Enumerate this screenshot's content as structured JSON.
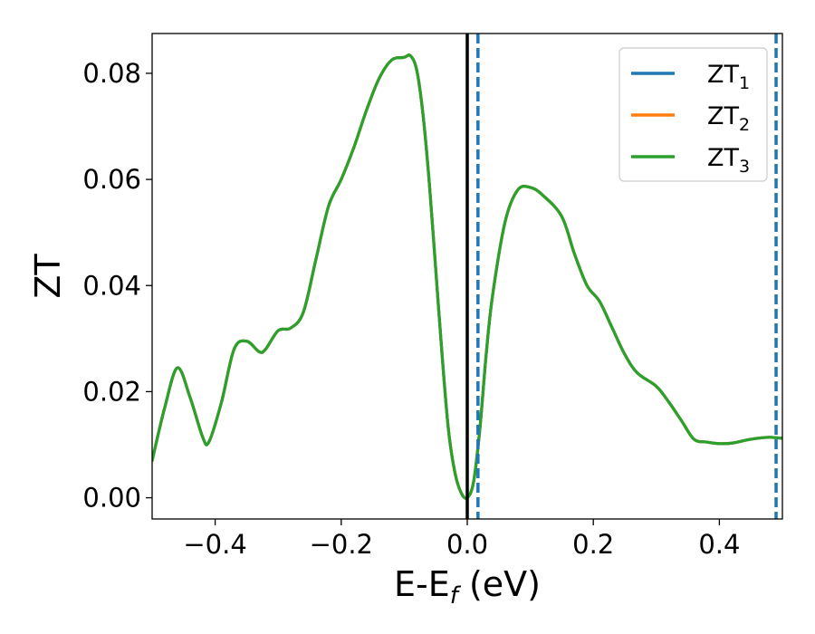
{
  "chart_data": {
    "type": "line",
    "title": "",
    "xlabel": "E-E",
    "xlabel_sub": "f",
    "xlabel_suffix": " (eV)",
    "ylabel": "ZT",
    "xlim": [
      -0.5,
      0.5
    ],
    "ylim": [
      -0.004,
      0.0875
    ],
    "xticks": [
      -0.4,
      -0.2,
      0.0,
      0.2,
      0.4
    ],
    "xtick_labels": [
      "−0.4",
      "−0.2",
      "0.0",
      "0.2",
      "0.4"
    ],
    "yticks": [
      0.0,
      0.02,
      0.04,
      0.06,
      0.08
    ],
    "ytick_labels": [
      "0.00",
      "0.02",
      "0.04",
      "0.06",
      "0.08"
    ],
    "grid": false,
    "legend_position": "top-right",
    "colors": {
      "series1": "#1f77b4",
      "series2": "#ff7f0e",
      "series3": "#2ca02c",
      "fermi_line": "#000000",
      "dashed_lines": "#1f77b4"
    },
    "vertical_lines": [
      {
        "x": 0.0,
        "style": "solid",
        "color": "#000000"
      },
      {
        "x": 0.017,
        "style": "dashed",
        "color": "#1f77b4"
      },
      {
        "x": 0.49,
        "style": "dashed",
        "color": "#1f77b4"
      }
    ],
    "series": [
      {
        "name": "ZT",
        "sub": "1",
        "color": "#1f77b4",
        "x": [
          -0.5,
          -0.48,
          -0.46,
          -0.44,
          -0.42,
          -0.41,
          -0.39,
          -0.37,
          -0.35,
          -0.33,
          -0.32,
          -0.3,
          -0.28,
          -0.26,
          -0.24,
          -0.22,
          -0.2,
          -0.18,
          -0.16,
          -0.14,
          -0.12,
          -0.1,
          -0.09,
          -0.08,
          -0.07,
          -0.06,
          -0.05,
          -0.04,
          -0.03,
          -0.02,
          -0.01,
          0.0,
          0.01,
          0.02,
          0.03,
          0.04,
          0.06,
          0.08,
          0.1,
          0.12,
          0.15,
          0.17,
          0.19,
          0.21,
          0.23,
          0.25,
          0.27,
          0.3,
          0.32,
          0.34,
          0.36,
          0.38,
          0.4,
          0.42,
          0.44,
          0.46,
          0.48,
          0.5
        ],
        "y": [
          0.007,
          0.017,
          0.0245,
          0.019,
          0.0115,
          0.0105,
          0.018,
          0.028,
          0.0295,
          0.0275,
          0.028,
          0.0315,
          0.032,
          0.035,
          0.045,
          0.055,
          0.06,
          0.066,
          0.073,
          0.079,
          0.0825,
          0.083,
          0.0833,
          0.0805,
          0.072,
          0.059,
          0.043,
          0.027,
          0.013,
          0.005,
          0.001,
          0.0,
          0.003,
          0.013,
          0.027,
          0.038,
          0.052,
          0.058,
          0.0585,
          0.057,
          0.053,
          0.046,
          0.04,
          0.037,
          0.032,
          0.027,
          0.0235,
          0.021,
          0.018,
          0.0145,
          0.011,
          0.0105,
          0.0102,
          0.0103,
          0.0108,
          0.0112,
          0.0114,
          0.0112
        ]
      },
      {
        "name": "ZT",
        "sub": "2",
        "color": "#ff7f0e",
        "x": [
          -0.5,
          -0.48,
          -0.46,
          -0.44,
          -0.42,
          -0.41,
          -0.39,
          -0.37,
          -0.35,
          -0.33,
          -0.32,
          -0.3,
          -0.28,
          -0.26,
          -0.24,
          -0.22,
          -0.2,
          -0.18,
          -0.16,
          -0.14,
          -0.12,
          -0.1,
          -0.09,
          -0.08,
          -0.07,
          -0.06,
          -0.05,
          -0.04,
          -0.03,
          -0.02,
          -0.01,
          0.0,
          0.01,
          0.02,
          0.03,
          0.04,
          0.06,
          0.08,
          0.1,
          0.12,
          0.15,
          0.17,
          0.19,
          0.21,
          0.23,
          0.25,
          0.27,
          0.3,
          0.32,
          0.34,
          0.36,
          0.38,
          0.4,
          0.42,
          0.44,
          0.46,
          0.48,
          0.5
        ],
        "y": [
          0.007,
          0.017,
          0.0245,
          0.019,
          0.0115,
          0.0105,
          0.018,
          0.028,
          0.0295,
          0.0275,
          0.028,
          0.0315,
          0.032,
          0.035,
          0.045,
          0.055,
          0.06,
          0.066,
          0.073,
          0.079,
          0.0825,
          0.083,
          0.0833,
          0.0805,
          0.072,
          0.059,
          0.043,
          0.027,
          0.013,
          0.005,
          0.001,
          0.0,
          0.003,
          0.013,
          0.027,
          0.038,
          0.052,
          0.058,
          0.0585,
          0.057,
          0.053,
          0.046,
          0.04,
          0.037,
          0.032,
          0.027,
          0.0235,
          0.021,
          0.018,
          0.0145,
          0.011,
          0.0105,
          0.0102,
          0.0103,
          0.0108,
          0.0112,
          0.0114,
          0.0112
        ]
      },
      {
        "name": "ZT",
        "sub": "3",
        "color": "#2ca02c",
        "x": [
          -0.5,
          -0.48,
          -0.46,
          -0.44,
          -0.42,
          -0.41,
          -0.39,
          -0.37,
          -0.35,
          -0.33,
          -0.32,
          -0.3,
          -0.28,
          -0.26,
          -0.24,
          -0.22,
          -0.2,
          -0.18,
          -0.16,
          -0.14,
          -0.12,
          -0.1,
          -0.09,
          -0.08,
          -0.07,
          -0.06,
          -0.05,
          -0.04,
          -0.03,
          -0.02,
          -0.01,
          0.0,
          0.01,
          0.02,
          0.03,
          0.04,
          0.06,
          0.08,
          0.1,
          0.12,
          0.15,
          0.17,
          0.19,
          0.21,
          0.23,
          0.25,
          0.27,
          0.3,
          0.32,
          0.34,
          0.36,
          0.38,
          0.4,
          0.42,
          0.44,
          0.46,
          0.48,
          0.5
        ],
        "y": [
          0.007,
          0.017,
          0.0245,
          0.019,
          0.0115,
          0.0105,
          0.018,
          0.028,
          0.0295,
          0.0275,
          0.028,
          0.0315,
          0.032,
          0.035,
          0.045,
          0.055,
          0.06,
          0.066,
          0.073,
          0.079,
          0.0825,
          0.083,
          0.0833,
          0.0805,
          0.072,
          0.059,
          0.043,
          0.027,
          0.013,
          0.005,
          0.001,
          0.0,
          0.003,
          0.013,
          0.027,
          0.038,
          0.052,
          0.058,
          0.0585,
          0.057,
          0.053,
          0.046,
          0.04,
          0.037,
          0.032,
          0.027,
          0.0235,
          0.021,
          0.018,
          0.0145,
          0.011,
          0.0105,
          0.0102,
          0.0103,
          0.0108,
          0.0112,
          0.0114,
          0.0112
        ]
      }
    ]
  }
}
